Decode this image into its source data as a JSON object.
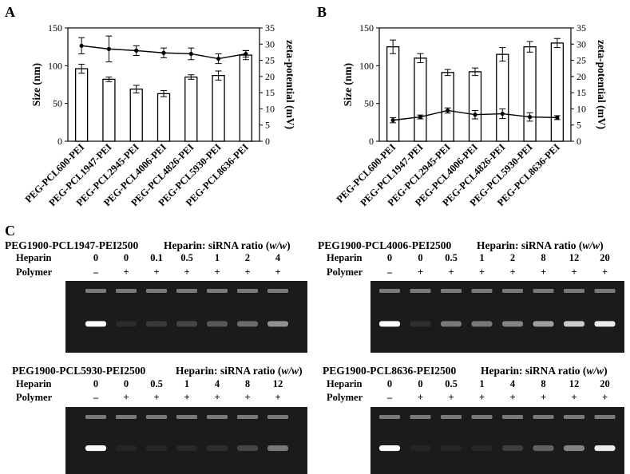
{
  "panels": {
    "A": "A",
    "B": "B",
    "C": "C"
  },
  "chart_data": [
    {
      "type": "bar",
      "panel": "A",
      "categories": [
        "PEG-PCL600-PEI",
        "PEG-PCL1947-PEI",
        "PEG-PCL2945-PEI",
        "PEG-PCL4006-PEI",
        "PEG-PCL4826-PEI",
        "PEG-PCL5930-PEI",
        "PEG-PCL8636-PEI"
      ],
      "series": [
        {
          "axis": "left",
          "kind": "bar",
          "values": [
            96,
            82,
            69,
            63,
            85,
            87,
            114
          ],
          "errors": [
            6,
            3,
            5,
            4,
            3,
            6,
            6
          ]
        },
        {
          "axis": "right",
          "kind": "line",
          "values": [
            29.5,
            28.5,
            28,
            27.3,
            27,
            25.5,
            27
          ],
          "errors": [
            2.5,
            4,
            1.5,
            1.5,
            1.8,
            1.5,
            1
          ]
        }
      ],
      "ylabel": "Size (nm)",
      "ylabel_right": "zeta-potential (mV)",
      "ylim": [
        0,
        150
      ],
      "ylim_right": [
        0,
        35
      ],
      "yticks": [
        "0",
        "50",
        "100",
        "150"
      ],
      "yticks_right": [
        "0",
        "5",
        "10",
        "15",
        "20",
        "25",
        "30",
        "35"
      ]
    },
    {
      "type": "bar",
      "panel": "B",
      "categories": [
        "PEG-PCL600-PEI",
        "PEG-PCL1947-PEI",
        "PEG-PCL2945-PEI",
        "PEG-PCL4006-PEI",
        "PEG-PCL4826-PEI",
        "PEG-PCL5930-PEI",
        "PEG-PCL8636-PEI"
      ],
      "series": [
        {
          "axis": "left",
          "kind": "bar",
          "values": [
            125,
            110,
            91,
            92,
            115,
            125,
            130
          ],
          "errors": [
            9,
            6,
            4,
            5,
            9,
            7,
            6
          ]
        },
        {
          "axis": "right",
          "kind": "line",
          "values": [
            6.5,
            7.5,
            9.5,
            8.2,
            8.5,
            7.5,
            7.3
          ],
          "errors": [
            0.8,
            0.6,
            0.8,
            1.3,
            1.5,
            1.3,
            0.6
          ]
        }
      ],
      "ylabel": "Size (nm)",
      "ylabel_right": "zeta-potential (mV)",
      "ylim": [
        0,
        150
      ],
      "ylim_right": [
        0,
        35
      ],
      "yticks": [
        "0",
        "50",
        "100",
        "150"
      ],
      "yticks_right": [
        "0",
        "5",
        "10",
        "15",
        "20",
        "25",
        "30",
        "35"
      ]
    }
  ],
  "gels": [
    {
      "title": "PEG1900-PCL1947-PEI2500",
      "ratio_prefix": "Heparin: siRNA ratio (",
      "ratio_italic": "w/w",
      "ratio_suffix": ")",
      "heparin_label": "Heparin",
      "polymer_label": "Polymer",
      "heparin": [
        "0",
        "0",
        "0.1",
        "0.5",
        "1",
        "2",
        "4"
      ],
      "polymer": [
        "–",
        "+",
        "+",
        "+",
        "+",
        "+",
        "+"
      ],
      "band_brightness": [
        1.0,
        0.12,
        0.22,
        0.3,
        0.4,
        0.5,
        0.65
      ]
    },
    {
      "title": "PEG1900-PCL4006-PEI2500",
      "ratio_prefix": "Heparin: siRNA ratio (",
      "ratio_italic": "w/w",
      "ratio_suffix": ")",
      "heparin_label": "Heparin",
      "polymer_label": "Polymer",
      "heparin": [
        "0",
        "0",
        "0.5",
        "1",
        "2",
        "8",
        "12",
        "20"
      ],
      "polymer": [
        "–",
        "+",
        "+",
        "+",
        "+",
        "+",
        "+",
        "+"
      ],
      "band_brightness": [
        1.0,
        0.15,
        0.55,
        0.55,
        0.6,
        0.7,
        0.85,
        0.95
      ]
    },
    {
      "title": "PEG1900-PCL5930-PEI2500",
      "ratio_prefix": "Heparin: siRNA ratio (",
      "ratio_italic": "w/w",
      "ratio_suffix": ")",
      "heparin_label": "Heparin",
      "polymer_label": "Polymer",
      "heparin": [
        "0",
        "0",
        "0.5",
        "1",
        "4",
        "8",
        "12"
      ],
      "polymer": [
        "–",
        "+",
        "+",
        "+",
        "+",
        "+",
        "+"
      ],
      "band_brightness": [
        1.0,
        0.06,
        0.08,
        0.1,
        0.15,
        0.3,
        0.55
      ]
    },
    {
      "title": "PEG1900-PCL8636-PEI2500",
      "ratio_prefix": "Heparin: siRNA ratio (",
      "ratio_italic": "w/w",
      "ratio_suffix": ")",
      "heparin_label": "Heparin",
      "polymer_label": "Polymer",
      "heparin": [
        "0",
        "0",
        "0.5",
        "1",
        "4",
        "8",
        "12",
        "20"
      ],
      "polymer": [
        "–",
        "+",
        "+",
        "+",
        "+",
        "+",
        "+",
        "+"
      ],
      "band_brightness": [
        1.0,
        0.05,
        0.06,
        0.08,
        0.25,
        0.45,
        0.6,
        0.95
      ]
    }
  ]
}
